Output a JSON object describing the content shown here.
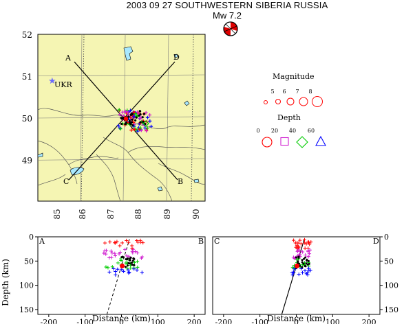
{
  "header": {
    "title": "2003 09 27 SOUTHWESTERN SIBERIA RUSSIA",
    "magnitude_label": "Mw  7.2"
  },
  "map": {
    "lat_ticks": [
      "52",
      "51",
      "50",
      "49"
    ],
    "lon_ticks": [
      "85",
      "86",
      "87",
      "88",
      "89",
      "90"
    ],
    "lat_range": [
      48,
      52
    ],
    "lon_range": [
      84.5,
      90.2
    ],
    "station": {
      "label": "UKR",
      "lon": 84.75,
      "lat": 50.93,
      "color": "#6b6bff"
    },
    "profiles": [
      {
        "start": "A",
        "end": "B",
        "from": [
          85.3,
          51.4
        ],
        "to": [
          89.5,
          48.3
        ]
      },
      {
        "start": "C",
        "end": "D",
        "from": [
          85.3,
          48.3
        ],
        "to": [
          89.4,
          51.4
        ]
      }
    ],
    "land_color": "#f5f5b3"
  },
  "legend": {
    "magnitude_title": "Magnitude",
    "magnitude_values": [
      "5",
      "6",
      "7",
      "8"
    ],
    "depth_title": "Depth",
    "depth_values": [
      "0",
      "20",
      "40",
      "60"
    ],
    "depth_colors": [
      "#ff0000",
      "#d020d0",
      "#00cc00",
      "#0000ff"
    ]
  },
  "sections": [
    {
      "left_label": "A",
      "right_label": "B"
    },
    {
      "left_label": "C",
      "right_label": "D"
    }
  ],
  "section_axes": {
    "ylabel": "Depth (km)",
    "xlabel": "Distance (km)",
    "x_ticks": [
      "-200",
      "-100",
      "0",
      "100",
      "200"
    ],
    "y_ticks": [
      "0",
      "50",
      "100",
      "150"
    ],
    "xlim": [
      -230,
      230
    ],
    "ylim": [
      0,
      160
    ]
  },
  "colors": {
    "depth_shallow": "#ff0000",
    "depth_mid": "#d020d0",
    "depth_deep": "#00cc00",
    "depth_deepest": "#0000ff",
    "mainshock": "#ff0000",
    "water": "#a8e8ff"
  }
}
